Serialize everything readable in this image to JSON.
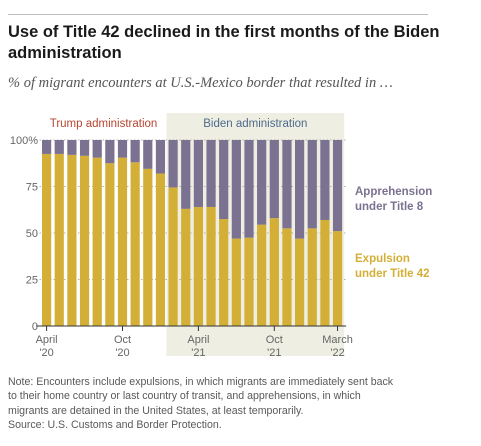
{
  "header": {
    "title": "Use of Title 42 declined in the first months of the Biden administration",
    "subtitle": "% of migrant encounters at U.S.-Mexico border that resulted in …"
  },
  "footer": {
    "note_line1": "Note: Encounters include expulsions, in which migrants are immediately sent back",
    "note_line2": "to their home country or last country of transit, and apprehensions, in which",
    "note_line3": "migrants are detained in the United States, at least temporarily.",
    "source": "Source: U.S. Customs and Border Protection."
  },
  "chart_data": {
    "type": "bar",
    "stacked": true,
    "months": 24,
    "ylim": [
      0,
      100
    ],
    "y_ticks": [
      {
        "value": 0,
        "label": "0"
      },
      {
        "value": 25,
        "label": "25"
      },
      {
        "value": 50,
        "label": "50"
      },
      {
        "value": 75,
        "label": "75"
      },
      {
        "value": 100,
        "label": "100%"
      }
    ],
    "x_ticks": [
      {
        "index": 0,
        "line1": "April",
        "line2": "'20"
      },
      {
        "index": 6,
        "line1": "Oct",
        "line2": "'20"
      },
      {
        "index": 12,
        "line1": "April",
        "line2": "'21"
      },
      {
        "index": 18,
        "line1": "Oct",
        "line2": "'21"
      },
      {
        "index": 23,
        "line1": "March",
        "line2": "'22"
      }
    ],
    "series": [
      {
        "name": "Expulsion under Title 42",
        "color": "#d4af37",
        "values": [
          92.5,
          92.5,
          92,
          91.5,
          90.5,
          87.5,
          90.5,
          88,
          84.5,
          82,
          74.5,
          63,
          64,
          64,
          57.5,
          47,
          47.5,
          54.5,
          58,
          52.5,
          47,
          52.5,
          57,
          51
        ]
      },
      {
        "name": "Apprehension under Title 8",
        "color": "#7b7191",
        "values": [
          7.5,
          7.5,
          8,
          8.5,
          9.5,
          12.5,
          9.5,
          12,
          15.5,
          18,
          25.5,
          37,
          36,
          36,
          42.5,
          53,
          52.5,
          45.5,
          42,
          47.5,
          53,
          47.5,
          43,
          49
        ]
      }
    ],
    "legend": {
      "apprehension_line1": "Apprehension",
      "apprehension_line2": "under Title 8",
      "expulsion_line1": "Expulsion",
      "expulsion_line2": "under Title 42"
    },
    "bands": [
      {
        "label": "Trump administration",
        "start_index": 0,
        "end_index": 9,
        "label_color": "#b5452f"
      },
      {
        "label": "Biden administration",
        "start_index": 10,
        "end_index": 23,
        "label_color": "#4f6a8a",
        "fill": "#eeeee3"
      }
    ]
  }
}
